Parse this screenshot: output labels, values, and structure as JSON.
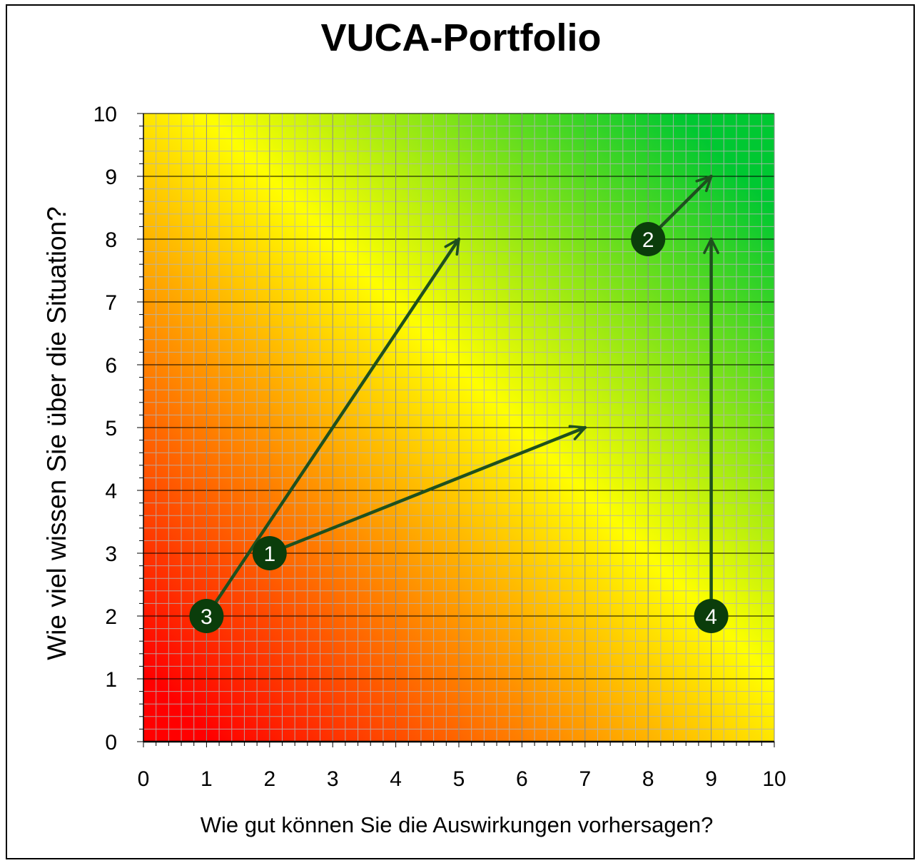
{
  "chart_data": {
    "type": "scatter",
    "title": "VUCA-Portfolio",
    "xlabel": "Wie gut können Sie die Auswirkungen vorhersagen?",
    "ylabel": "Wie viel wissen Sie über die Situation?",
    "xlim": [
      0,
      10
    ],
    "ylim": [
      0,
      10
    ],
    "x_ticks": [
      "0",
      "1",
      "2",
      "3",
      "4",
      "5",
      "6",
      "7",
      "8",
      "9",
      "10"
    ],
    "y_ticks": [
      "0",
      "1",
      "2",
      "3",
      "4",
      "5",
      "6",
      "7",
      "8",
      "9",
      "10"
    ],
    "grid": true,
    "background_gradient": {
      "low": "#ff0000",
      "mid": "#ffff00",
      "high": "#00c832"
    },
    "points": [
      {
        "label": "1",
        "x": 2,
        "y": 3
      },
      {
        "label": "2",
        "x": 8,
        "y": 8
      },
      {
        "label": "3",
        "x": 1,
        "y": 2
      },
      {
        "label": "4",
        "x": 9,
        "y": 2
      }
    ],
    "arrows": [
      {
        "from": [
          1,
          2
        ],
        "to": [
          5,
          8
        ]
      },
      {
        "from": [
          2,
          3
        ],
        "to": [
          7,
          5
        ]
      },
      {
        "from": [
          8,
          8
        ],
        "to": [
          9,
          9
        ]
      },
      {
        "from": [
          9,
          2
        ],
        "to": [
          9,
          8
        ]
      }
    ],
    "colors": {
      "marker": "#0b3d0b",
      "arrow": "#1e501e",
      "marker_text": "#ffffff"
    }
  }
}
